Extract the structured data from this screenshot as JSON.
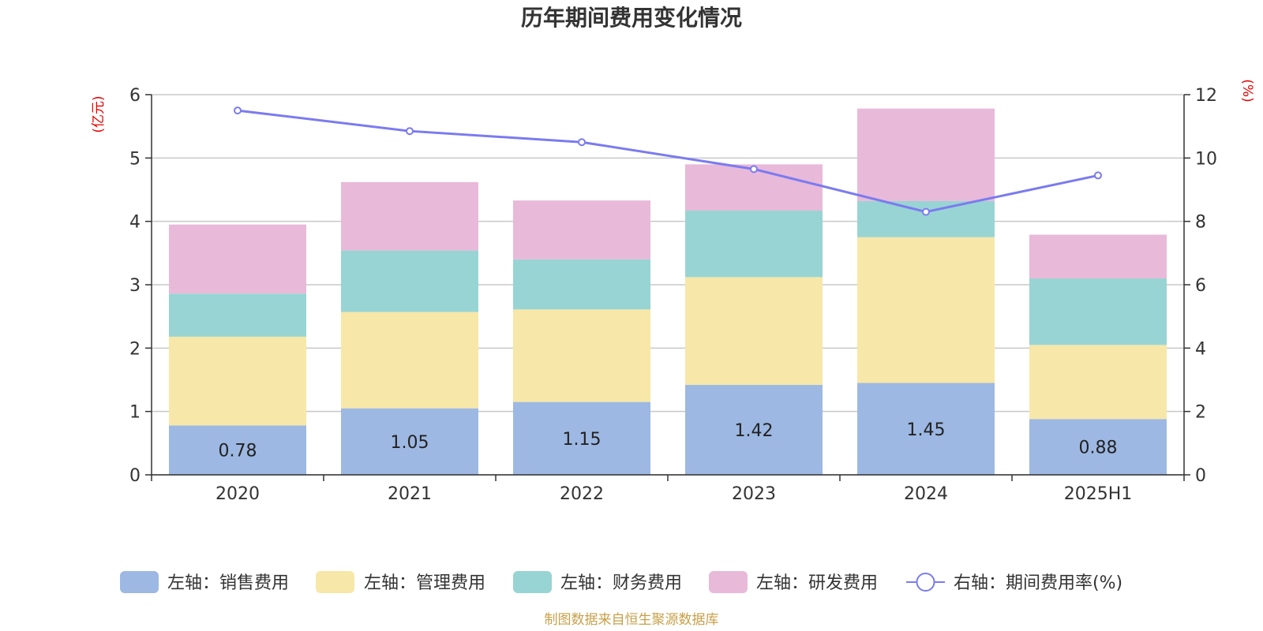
{
  "chart_data": {
    "type": "bar",
    "title": "历年期间费用变化情况",
    "source": "制图数据来自恒生聚源数据库",
    "categories": [
      "2020",
      "2021",
      "2022",
      "2023",
      "2024",
      "2025H1"
    ],
    "left_axis": {
      "unit": "(亿元)",
      "ylim": [
        0,
        6
      ],
      "ticks": [
        "0",
        "1",
        "2",
        "3",
        "4",
        "5",
        "6"
      ]
    },
    "right_axis": {
      "unit": "(%)",
      "ylim": [
        0,
        12
      ],
      "ticks": [
        "0",
        "2",
        "4",
        "6",
        "8",
        "10",
        "12"
      ]
    },
    "grid": true,
    "legend_position": "bottom",
    "series": [
      {
        "name": "左轴：销售费用",
        "kind": "bar",
        "color": "#9db8e2",
        "values": [
          0.78,
          1.05,
          1.15,
          1.42,
          1.45,
          0.88
        ],
        "labels": [
          "0.78",
          "1.05",
          "1.15",
          "1.42",
          "1.45",
          "0.88"
        ]
      },
      {
        "name": "左轴：管理费用",
        "kind": "bar",
        "color": "#f7e7a8",
        "values": [
          1.4,
          1.52,
          1.46,
          1.7,
          2.3,
          1.17
        ]
      },
      {
        "name": "左轴：财务费用",
        "kind": "bar",
        "color": "#98d4d4",
        "values": [
          0.68,
          0.97,
          0.79,
          1.05,
          0.57,
          1.05
        ]
      },
      {
        "name": "左轴：研发费用",
        "kind": "bar",
        "color": "#e8b9d9",
        "values": [
          1.09,
          1.08,
          0.93,
          0.73,
          1.46,
          0.69
        ]
      },
      {
        "name": "右轴：期间费用率(%)",
        "kind": "line",
        "axis": "right",
        "color": "#7b7bef",
        "values": [
          11.5,
          10.85,
          10.5,
          9.65,
          8.3,
          9.45
        ]
      }
    ]
  }
}
